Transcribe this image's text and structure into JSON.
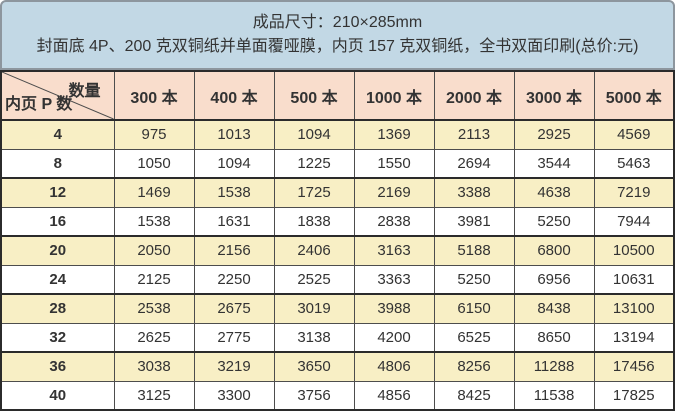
{
  "header": {
    "line1": "成品尺寸：210×285mm",
    "line2": "封面底 4P、200 克双铜纸并单面覆哑膜，内页 157 克双铜纸，全书双面印刷(总价:元)"
  },
  "chart_data": {
    "type": "table",
    "title": "成品尺寸：210×285mm",
    "subtitle": "封面底 4P、200 克双铜纸并单面覆哑膜，内页 157 克双铜纸，全书双面印刷(总价:元)",
    "col_axis_label": "数量",
    "row_axis_label": "内页 P 数",
    "unit": "元",
    "columns": [
      "300 本",
      "400 本",
      "500 本",
      "1000 本",
      "2000 本",
      "3000 本",
      "5000 本"
    ],
    "rows": [
      4,
      8,
      12,
      16,
      20,
      24,
      28,
      32,
      36,
      40
    ],
    "values": [
      [
        975,
        1013,
        1094,
        1369,
        2113,
        2925,
        4569
      ],
      [
        1050,
        1094,
        1225,
        1550,
        2694,
        3544,
        5463
      ],
      [
        1469,
        1538,
        1725,
        2169,
        3388,
        4638,
        7219
      ],
      [
        1538,
        1631,
        1838,
        2838,
        3981,
        5250,
        7944
      ],
      [
        2050,
        2156,
        2406,
        3163,
        5188,
        6800,
        10500
      ],
      [
        2125,
        2250,
        2525,
        3363,
        5250,
        6956,
        10631
      ],
      [
        2538,
        2675,
        3019,
        3988,
        6150,
        8438,
        13100
      ],
      [
        2625,
        2775,
        3138,
        4200,
        6525,
        8650,
        13194
      ],
      [
        3038,
        3219,
        3650,
        4806,
        8256,
        11288,
        17456
      ],
      [
        3125,
        3300,
        3756,
        4856,
        8425,
        11538,
        17825
      ]
    ]
  },
  "colors": {
    "panel_bg": "#c2d8e5",
    "panel_border": "#8d969e",
    "header_row_bg": "#f9ddcc",
    "stripe_bg": "#f8efc5",
    "row_bg": "#ffffff",
    "grid_line": "#4d4d4d",
    "grid_line_strong": "#2b2b2b",
    "text": "#333333"
  }
}
